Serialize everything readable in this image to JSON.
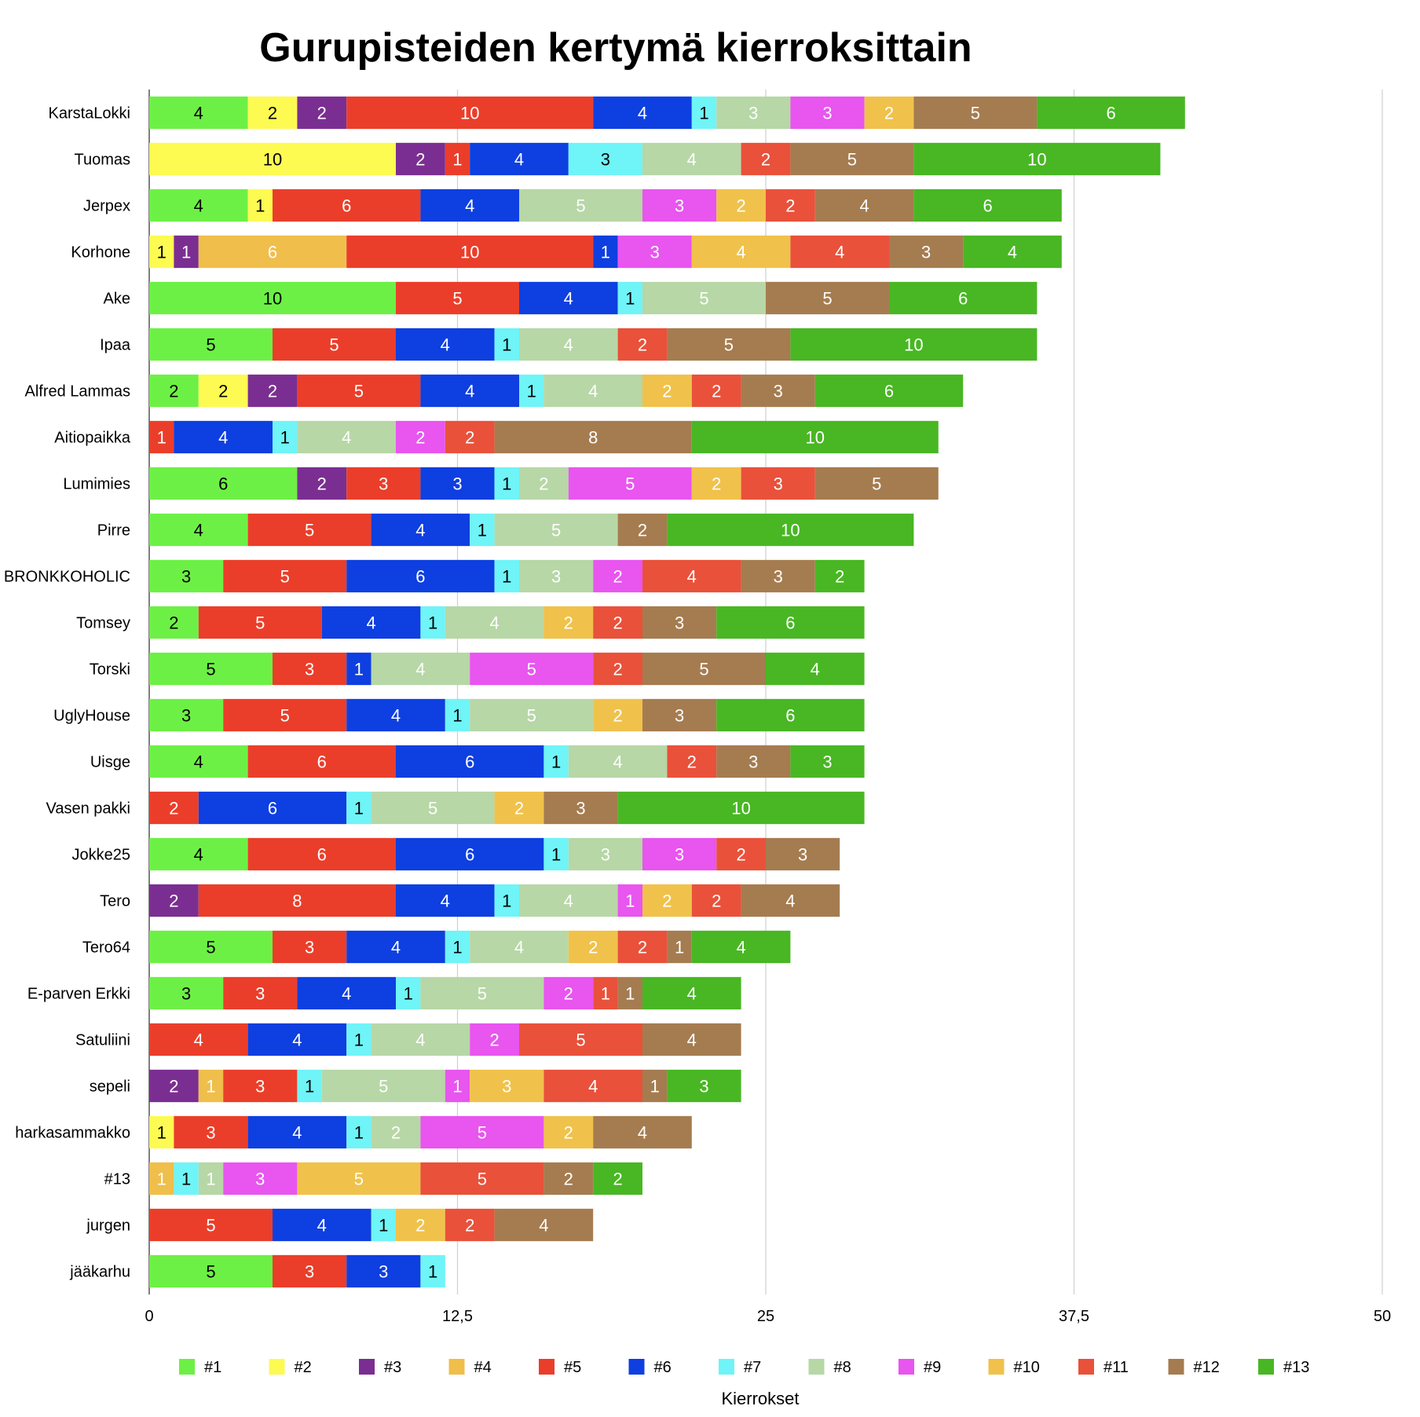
{
  "chart_data": {
    "type": "bar",
    "orientation": "horizontal",
    "stacked": true,
    "title": "Gurupisteiden kertymä kierroksittain",
    "xlabel": "Kierrokset",
    "ylabel": "",
    "xlim": [
      0,
      50
    ],
    "xticks": [
      "0",
      "12,5",
      "25",
      "37,5",
      "50"
    ],
    "grid": true,
    "legend_position": "bottom",
    "categories": [
      "KarstaLokki",
      "Tuomas",
      "Jerpex",
      "Korhone",
      "Ake",
      "Ipaa",
      "Alfred Lammas",
      "Aitiopaikka",
      "Lumimies",
      "Pirre",
      "BRONKKOHOLIC",
      "Tomsey",
      "Torski",
      "UglyHouse",
      "Uisge",
      "Vasen pakki",
      "Jokke25",
      "Tero",
      "Tero64",
      "E-parven Erkki",
      "Satuliini",
      "sepeli",
      "harkasammakko",
      "#13",
      "jurgen",
      "jääkarhu"
    ],
    "series": [
      {
        "name": "#1",
        "color": "#6df045",
        "text_color": "#000000",
        "values": [
          4,
          0,
          4,
          0,
          10,
          5,
          2,
          0,
          6,
          4,
          3,
          2,
          5,
          3,
          4,
          0,
          4,
          0,
          5,
          3,
          0,
          0,
          0,
          0,
          0,
          5
        ]
      },
      {
        "name": "#2",
        "color": "#fdfa52",
        "text_color": "#000000",
        "values": [
          2,
          10,
          1,
          1,
          0,
          0,
          2,
          0,
          0,
          0,
          0,
          0,
          0,
          0,
          0,
          0,
          0,
          0,
          0,
          0,
          0,
          0,
          1,
          0,
          0,
          0
        ]
      },
      {
        "name": "#3",
        "color": "#7b2e91",
        "text_color": "#ffffff",
        "values": [
          2,
          2,
          0,
          1,
          0,
          0,
          2,
          0,
          2,
          0,
          0,
          0,
          0,
          0,
          0,
          0,
          0,
          2,
          0,
          0,
          0,
          2,
          0,
          0,
          0,
          0
        ]
      },
      {
        "name": "#4",
        "color": "#f0be4a",
        "text_color": "#ffffff",
        "values": [
          0,
          0,
          0,
          6,
          0,
          0,
          0,
          0,
          0,
          0,
          0,
          0,
          0,
          0,
          0,
          0,
          0,
          0,
          0,
          0,
          0,
          1,
          0,
          1,
          0,
          0
        ]
      },
      {
        "name": "#5",
        "color": "#ea3e2a",
        "text_color": "#ffffff",
        "values": [
          10,
          1,
          6,
          10,
          5,
          5,
          5,
          1,
          3,
          5,
          5,
          5,
          3,
          5,
          6,
          2,
          6,
          8,
          3,
          3,
          4,
          3,
          3,
          0,
          5,
          3
        ]
      },
      {
        "name": "#6",
        "color": "#0e3fe0",
        "text_color": "#ffffff",
        "values": [
          4,
          4,
          4,
          1,
          4,
          4,
          4,
          4,
          3,
          4,
          6,
          4,
          1,
          4,
          6,
          6,
          6,
          4,
          4,
          4,
          4,
          0,
          4,
          0,
          4,
          3
        ]
      },
      {
        "name": "#7",
        "color": "#6ff4f7",
        "text_color": "#000000",
        "values": [
          1,
          3,
          0,
          0,
          1,
          1,
          1,
          1,
          1,
          1,
          1,
          1,
          0,
          1,
          1,
          1,
          1,
          1,
          1,
          1,
          1,
          1,
          1,
          1,
          1,
          1
        ]
      },
      {
        "name": "#8",
        "color": "#b7d7a6",
        "text_color": "#ffffff",
        "values": [
          3,
          4,
          5,
          0,
          5,
          4,
          4,
          4,
          2,
          5,
          3,
          4,
          4,
          5,
          4,
          5,
          3,
          4,
          4,
          5,
          4,
          5,
          2,
          1,
          0,
          0
        ]
      },
      {
        "name": "#9",
        "color": "#e855ef",
        "text_color": "#ffffff",
        "values": [
          3,
          0,
          3,
          3,
          0,
          0,
          0,
          2,
          5,
          0,
          2,
          0,
          5,
          0,
          0,
          0,
          3,
          1,
          0,
          2,
          2,
          1,
          5,
          3,
          0,
          0
        ]
      },
      {
        "name": "#10",
        "color": "#f0c24b",
        "text_color": "#ffffff",
        "values": [
          2,
          0,
          2,
          4,
          0,
          0,
          2,
          0,
          2,
          0,
          0,
          2,
          0,
          2,
          0,
          2,
          0,
          2,
          2,
          0,
          0,
          3,
          2,
          5,
          2,
          0
        ]
      },
      {
        "name": "#11",
        "color": "#e9513a",
        "text_color": "#ffffff",
        "values": [
          0,
          2,
          2,
          4,
          0,
          2,
          2,
          2,
          3,
          0,
          4,
          2,
          2,
          0,
          2,
          0,
          2,
          2,
          2,
          1,
          5,
          4,
          0,
          5,
          2,
          0
        ]
      },
      {
        "name": "#12",
        "color": "#a57c50",
        "text_color": "#ffffff",
        "values": [
          5,
          5,
          4,
          3,
          5,
          5,
          3,
          8,
          5,
          2,
          3,
          3,
          5,
          3,
          3,
          3,
          3,
          4,
          1,
          1,
          4,
          1,
          4,
          2,
          4,
          0
        ]
      },
      {
        "name": "#13",
        "color": "#48b723",
        "text_color": "#ffffff",
        "values": [
          6,
          10,
          6,
          4,
          6,
          10,
          6,
          10,
          0,
          10,
          2,
          6,
          4,
          6,
          3,
          10,
          0,
          0,
          4,
          4,
          0,
          3,
          0,
          2,
          0,
          0
        ]
      }
    ]
  }
}
